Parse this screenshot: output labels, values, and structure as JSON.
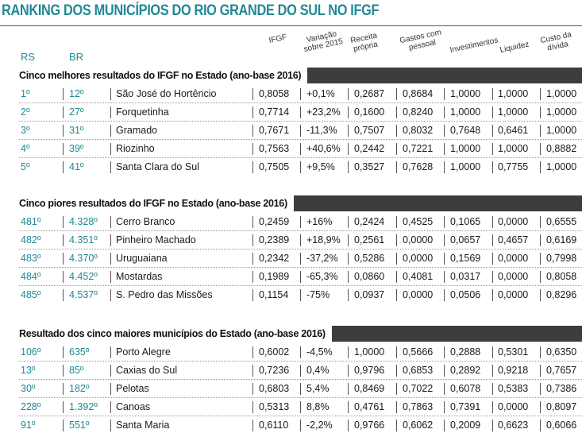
{
  "title": "RANKING DOS MUNICÍPIOS DO RIO GRANDE DO SUL NO IFGF",
  "colors": {
    "accent": "#1f8a94",
    "band": "#3d3d3d"
  },
  "headers": {
    "rs": "RS",
    "br": "BR",
    "ifgf": "IFGF",
    "variacao": [
      "Variação",
      "sobre 2015"
    ],
    "receita": [
      "Receita",
      "própria"
    ],
    "gastos": [
      "Gastos com",
      "pessoal"
    ],
    "investimentos": "Investimentos",
    "liquidez": "Liquidez",
    "custo": [
      "Custo da",
      "dívida"
    ]
  },
  "sections": [
    {
      "label": "Cinco melhores resultados do IFGF no Estado (ano-base 2016)",
      "rows": [
        [
          "1º",
          "12º",
          "São José do Hortêncio",
          "0,8058",
          "+0,1%",
          "0,2687",
          "0,8684",
          "1,0000",
          "1,0000",
          "1,0000"
        ],
        [
          "2º",
          "27º",
          "Forquetinha",
          "0,7714",
          "+23,2%",
          "0,1600",
          "0,8240",
          "1,0000",
          "1,0000",
          "1,0000"
        ],
        [
          "3º",
          "31º",
          "Gramado",
          "0,7671",
          "-11,3%",
          "0,7507",
          "0,8032",
          "0,7648",
          "0,6461",
          "1,0000"
        ],
        [
          "4º",
          "39º",
          "Riozinho",
          "0,7563",
          "+40,6%",
          "0,2442",
          "0,7221",
          "1,0000",
          "1,0000",
          "0,8882"
        ],
        [
          "5º",
          "41º",
          "Santa Clara do Sul",
          "0,7505",
          "+9,5%",
          "0,3527",
          "0,7628",
          "1,0000",
          "0,7755",
          "1,0000"
        ]
      ]
    },
    {
      "label": "Cinco piores resultados do IFGF no Estado (ano-base 2016)",
      "rows": [
        [
          "481º",
          "4.328º",
          "Cerro Branco",
          "0,2459",
          "+16%",
          "0,2424",
          "0,4525",
          "0,1065",
          "0,0000",
          "0,6555"
        ],
        [
          "482º",
          "4.351º",
          "Pinheiro Machado",
          "0,2389",
          "+18,9%",
          "0,2561",
          "0,0000",
          "0,0657",
          "0,4657",
          "0,6169"
        ],
        [
          "483º",
          "4.370º",
          "Uruguaiana",
          "0,2342",
          "-37,2%",
          "0,5286",
          "0,0000",
          "0,1569",
          "0,0000",
          "0,7998"
        ],
        [
          "484º",
          "4.452º",
          "Mostardas",
          "0,1989",
          "-65,3%",
          "0,0860",
          "0,4081",
          "0,0317",
          "0,0000",
          "0,8058"
        ],
        [
          "485º",
          "4.537º",
          "S. Pedro das Missões",
          "0,1154",
          "-75%",
          "0,0937",
          "0,0000",
          "0,0506",
          "0,0000",
          "0,8296"
        ]
      ]
    },
    {
      "label": "Resultado dos cinco maiores municípios do Estado (ano-base 2016)",
      "rows": [
        [
          "106º",
          "635º",
          "Porto Alegre",
          "0,6002",
          "-4,5%",
          "1,0000",
          "0,5666",
          "0,2888",
          "0,5301",
          "0,6350"
        ],
        [
          "13º",
          "85º",
          "Caxias do Sul",
          "0,7236",
          "0,4%",
          "0,9796",
          "0,6853",
          "0,2892",
          "0,9218",
          "0,7657"
        ],
        [
          "30º",
          "182º",
          "Pelotas",
          "0,6803",
          "5,4%",
          "0,8469",
          "0,7022",
          "0,6078",
          "0,5383",
          "0,7386"
        ],
        [
          "228º",
          "1.392º",
          "Canoas",
          "0,5313",
          "8,8%",
          "0,4761",
          "0,7863",
          "0,7391",
          "0,0000",
          "0,8097"
        ],
        [
          "91º",
          "551º",
          "Santa Maria",
          "0,6110",
          "-2,2%",
          "0,9766",
          "0,6062",
          "0,2009",
          "0,6623",
          "0,6066"
        ]
      ]
    }
  ]
}
